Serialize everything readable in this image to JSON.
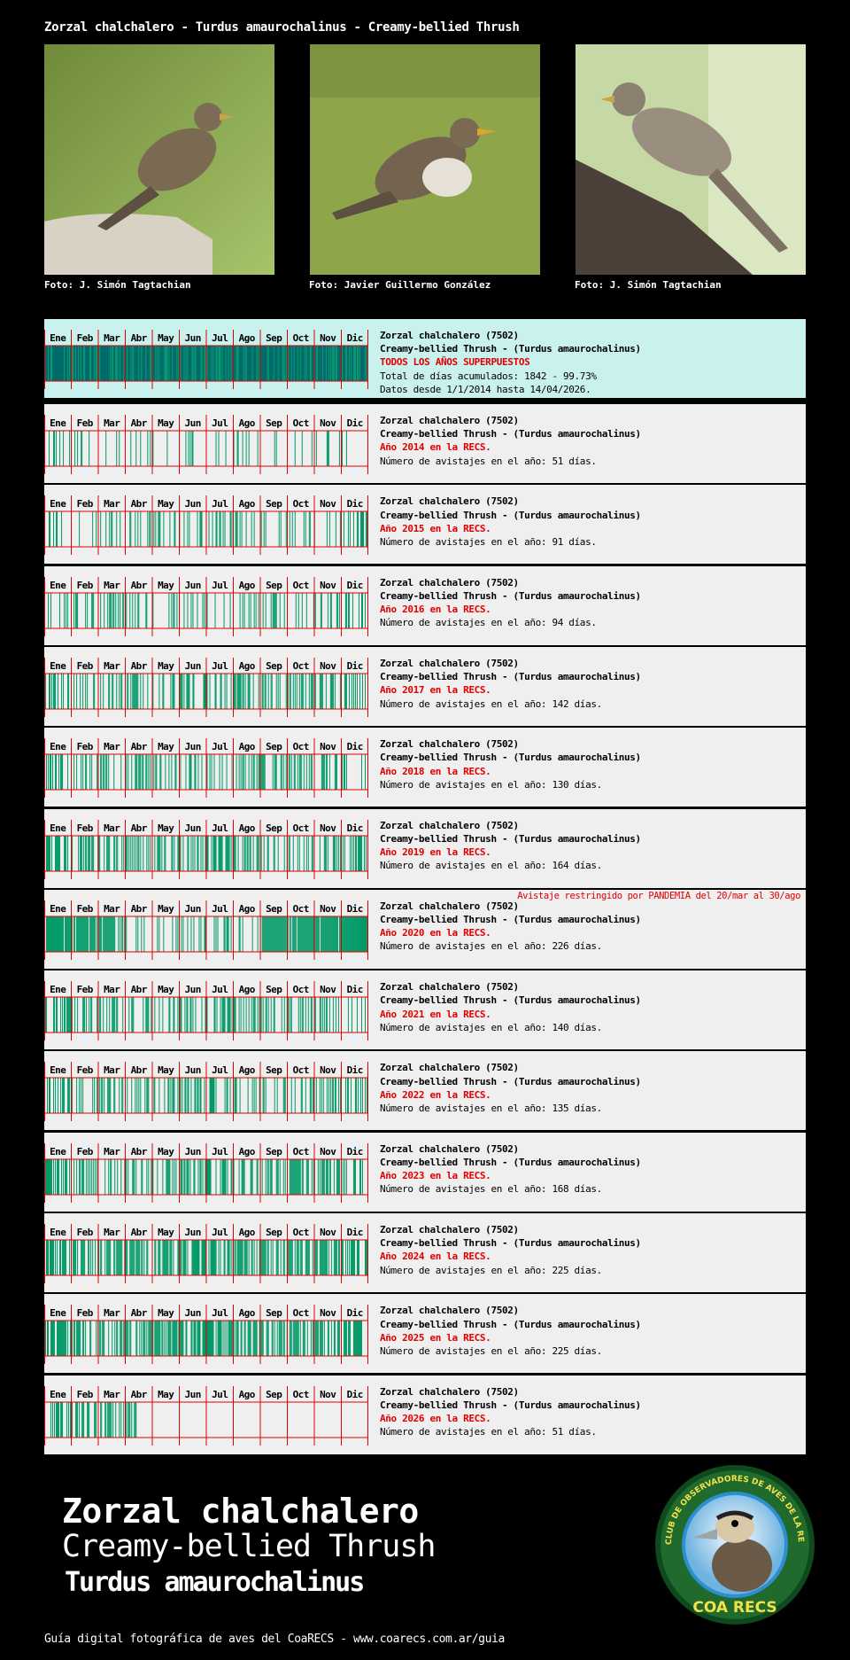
{
  "header": {
    "title": "Zorzal chalchalero - Turdus amaurochalinus - Creamy-bellied Thrush"
  },
  "photos": [
    {
      "caption": "Foto: J. Simón Tagtachian"
    },
    {
      "caption": "Foto: Javier Guillermo González"
    },
    {
      "caption": "Foto: J. Simón Tagtachian"
    }
  ],
  "months": [
    "Ene",
    "Feb",
    "Mar",
    "Abr",
    "May",
    "Jun",
    "Jul",
    "Ago",
    "Sep",
    "Oct",
    "Nov",
    "Dic"
  ],
  "colors": {
    "all_fill": "#006b6b",
    "all_stripe": "#0a9a72",
    "year_stripe": "#009966",
    "month_line": "#dd0000",
    "panel_all_bg": "#c9f2ee",
    "panel_bg": "#efefef"
  },
  "summary": {
    "line1": "Zorzal chalchalero (7502)",
    "line2": "Creamy-bellied Thrush - (Turdus amaurochalinus)",
    "line3": "TODOS LOS AÑOS SUPERPUESTOS",
    "line4": "Total de días acumulados: 1842 - 99.73%",
    "line5": "Datos desde 1/1/2014 hasta 14/04/2026."
  },
  "years": [
    {
      "line1": "Zorzal chalchalero (7502)",
      "line2": "Creamy-bellied Thrush - (Turdus amaurochalinus)",
      "line3": "Año 2014 en la RECS.",
      "line4": "Número de avistajes en el año: 51 días.",
      "year": 2014,
      "days": 51
    },
    {
      "line1": "Zorzal chalchalero (7502)",
      "line2": "Creamy-bellied Thrush - (Turdus amaurochalinus)",
      "line3": "Año 2015 en la RECS.",
      "line4": "Número de avistajes en el año: 91 días.",
      "year": 2015,
      "days": 91
    },
    {
      "line1": "Zorzal chalchalero (7502)",
      "line2": "Creamy-bellied Thrush - (Turdus amaurochalinus)",
      "line3": "Año 2016 en la RECS.",
      "line4": "Número de avistajes en el año: 94 días.",
      "year": 2016,
      "days": 94
    },
    {
      "line1": "Zorzal chalchalero (7502)",
      "line2": "Creamy-bellied Thrush - (Turdus amaurochalinus)",
      "line3": "Año 2017 en la RECS.",
      "line4": "Número de avistajes en el año: 142 días.",
      "year": 2017,
      "days": 142
    },
    {
      "line1": "Zorzal chalchalero (7502)",
      "line2": "Creamy-bellied Thrush - (Turdus amaurochalinus)",
      "line3": "Año 2018 en la RECS.",
      "line4": "Número de avistajes en el año: 130 días.",
      "year": 2018,
      "days": 130
    },
    {
      "line1": "Zorzal chalchalero (7502)",
      "line2": "Creamy-bellied Thrush - (Turdus amaurochalinus)",
      "line3": "Año 2019 en la RECS.",
      "line4": "Número de avistajes en el año: 164 días.",
      "year": 2019,
      "days": 164
    },
    {
      "line1": "Zorzal chalchalero (7502)",
      "line2": "Creamy-bellied Thrush - (Turdus amaurochalinus)",
      "line3": "Año 2020 en la RECS.",
      "line4": "Número de avistajes en el año: 226 días.",
      "year": 2020,
      "days": 226,
      "note": "Avistaje restringido por PANDEMIA del 20/mar al 30/ago"
    },
    {
      "line1": "Zorzal chalchalero (7502)",
      "line2": "Creamy-bellied Thrush - (Turdus amaurochalinus)",
      "line3": "Año 2021 en la RECS.",
      "line4": "Número de avistajes en el año: 140 días.",
      "year": 2021,
      "days": 140
    },
    {
      "line1": "Zorzal chalchalero (7502)",
      "line2": "Creamy-bellied Thrush - (Turdus amaurochalinus)",
      "line3": "Año 2022 en la RECS.",
      "line4": "Número de avistajes en el año: 135 días.",
      "year": 2022,
      "days": 135
    },
    {
      "line1": "Zorzal chalchalero (7502)",
      "line2": "Creamy-bellied Thrush - (Turdus amaurochalinus)",
      "line3": "Año 2023 en la RECS.",
      "line4": "Número de avistajes en el año: 168 días.",
      "year": 2023,
      "days": 168
    },
    {
      "line1": "Zorzal chalchalero (7502)",
      "line2": "Creamy-bellied Thrush - (Turdus amaurochalinus)",
      "line3": "Año 2024 en la RECS.",
      "line4": "Número de avistajes en el año: 225 días.",
      "year": 2024,
      "days": 225
    },
    {
      "line1": "Zorzal chalchalero (7502)",
      "line2": "Creamy-bellied Thrush - (Turdus amaurochalinus)",
      "line3": "Año 2025 en la RECS.",
      "line4": "Número de avistajes en el año: 225 días.",
      "year": 2025,
      "days": 225
    },
    {
      "line1": "Zorzal chalchalero (7502)",
      "line2": "Creamy-bellied Thrush - (Turdus amaurochalinus)",
      "line3": "Año 2026 en la RECS.",
      "line4": "Número de avistajes en el año: 51 días.",
      "year": 2026,
      "days": 51
    }
  ],
  "bottom": {
    "common_es": "Zorzal chalchalero",
    "common_en": "Creamy-bellied Thrush",
    "scientific": "Turdus amaurochalinus",
    "footer": "Guía digital fotográfica de aves del CoaRECS - www.coarecs.com.ar/guia",
    "logo_text": "CLUB DE OBSERVADORES DE AVES DE LA RESERVA ECOLÓGICA COSTANERA SUR",
    "logo_name": "COA RECS"
  }
}
